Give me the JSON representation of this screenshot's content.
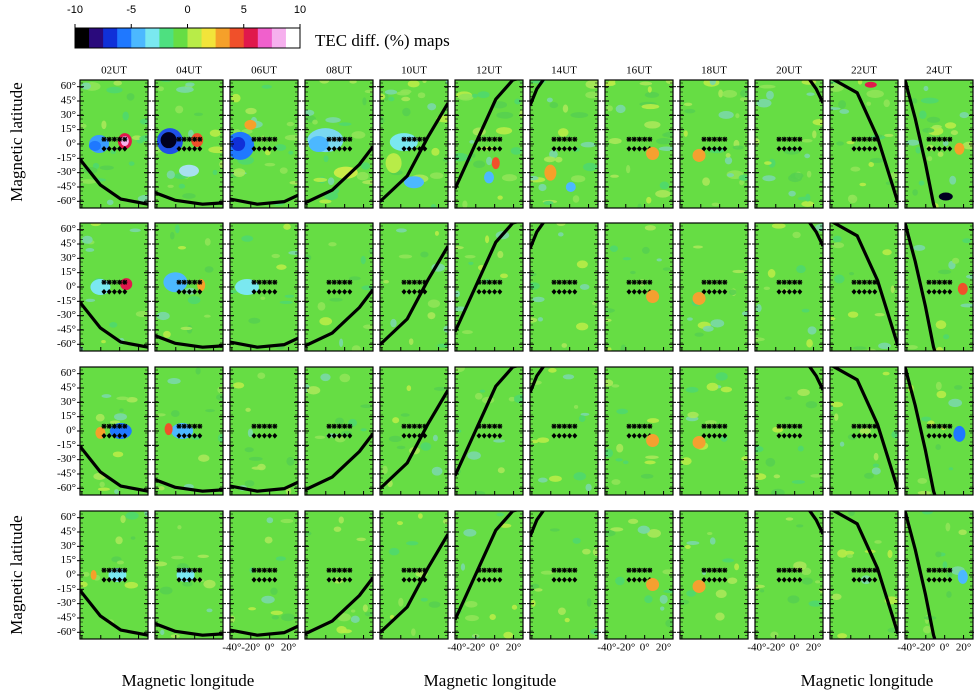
{
  "chart_data": {
    "type": "map-panels",
    "title": "TEC diff. (%) maps",
    "colorbar": {
      "lim": [
        -10,
        10
      ],
      "ticks": [
        -10,
        -5,
        0,
        5,
        10
      ],
      "colormap": [
        "#000000",
        "#2a0a7c",
        "#1030d8",
        "#1f78ff",
        "#4cb8ff",
        "#7ae8f0",
        "#4ee080",
        "#66dd44",
        "#b8ec48",
        "#f2e43a",
        "#f5a02a",
        "#f0502a",
        "#e0184c",
        "#f060cc",
        "#f6b0ee",
        "#ffffff"
      ]
    },
    "columns": [
      "02UT",
      "04UT",
      "06UT",
      "08UT",
      "10UT",
      "12UT",
      "14UT",
      "16UT",
      "18UT",
      "20UT",
      "22UT",
      "24UT"
    ],
    "ylabel": "Magnetic latitude",
    "xlabel": "Magnetic longitude",
    "ylim": [
      -67,
      67
    ],
    "yticks": [
      {
        "value": 60,
        "label": "60°"
      },
      {
        "value": 45,
        "label": "45°"
      },
      {
        "value": 30,
        "label": "30°"
      },
      {
        "value": 15,
        "label": "15°"
      },
      {
        "value": 0,
        "label": "0°"
      },
      {
        "value": -15,
        "label": "-15°"
      },
      {
        "value": -30,
        "label": "-30°"
      },
      {
        "value": -45,
        "label": "-45°"
      },
      {
        "value": -60,
        "label": "-60°"
      }
    ],
    "xlim": [
      -42,
      30
    ],
    "xticks": [
      {
        "value": -40,
        "label": "-40°"
      },
      {
        "value": -20,
        "label": "-20°"
      },
      {
        "value": 0,
        "label": "0°"
      },
      {
        "value": 20,
        "label": "20°"
      }
    ]
  }
}
